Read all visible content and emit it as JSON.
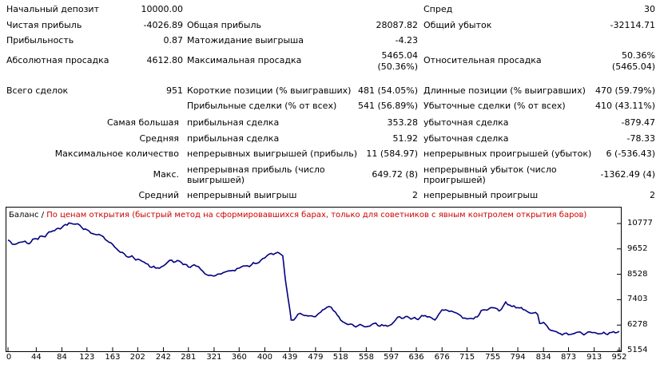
{
  "stats": {
    "deposit_label": "Начальный депозит",
    "deposit_value": "10000.00",
    "spread_label": "Спред",
    "spread_value": "30",
    "net_profit_label": "Чистая прибыль",
    "net_profit_value": "-4026.89",
    "gross_profit_label": "Общая прибыль",
    "gross_profit_value": "28087.82",
    "gross_loss_label": "Общий убыток",
    "gross_loss_value": "-32114.71",
    "profitability_label": "Прибыльность",
    "profitability_value": "0.87",
    "expected_payoff_label": "Матожидание выигрыша",
    "expected_payoff_value": "-4.23",
    "abs_dd_label": "Абсолютная просадка",
    "abs_dd_value": "4612.80",
    "max_dd_label": "Максимальная просадка",
    "max_dd_value_1": "5465.04",
    "max_dd_value_2": "(50.36%)",
    "rel_dd_label": "Относительная просадка",
    "rel_dd_value_1": "50.36%",
    "rel_dd_value_2": "(5465.04)",
    "total_trades_label": "Всего сделок",
    "total_trades_value": "951",
    "short_label": "Короткие позиции (% выигравших)",
    "short_value": "481 (54.05%)",
    "long_label": "Длинные позиции (% выигравших)",
    "long_value": "470 (59.79%)",
    "profit_trades_label": "Прибыльные сделки (% от всех)",
    "profit_trades_value": "541 (56.89%)",
    "loss_trades_label": "Убыточные сделки (% от всех)",
    "loss_trades_value": "410 (43.11%)",
    "largest_label": "Самая большая",
    "largest_profit_label": "прибыльная сделка",
    "largest_profit_value": "353.28",
    "largest_loss_label": "убыточная сделка",
    "largest_loss_value": "-879.47",
    "average_label": "Средняя",
    "average_profit_label": "прибыльная сделка",
    "average_profit_value": "51.92",
    "average_loss_label": "убыточная сделка",
    "average_loss_value": "-78.33",
    "max_count_label": "Максимальное количество",
    "max_cons_wins_label": "непрерывных выигрышей (прибыль)",
    "max_cons_wins_value": "11 (584.97)",
    "max_cons_losses_label": "непрерывных проигрышей (убыток)",
    "max_cons_losses_value": "6 (-536.43)",
    "max_label": "Макс.",
    "max_cons_profit_label": "непрерывная прибыль (число выигрышей)",
    "max_cons_profit_value": "649.72 (8)",
    "max_cons_loss_label": "непрерывный убыток (число проигрышей)",
    "max_cons_loss_value": "-1362.49 (4)",
    "avg_label": "Средний",
    "avg_cons_wins_label": "непрерывный выигрыш",
    "avg_cons_wins_value": "2",
    "avg_cons_losses_label": "непрерывный проигрыш",
    "avg_cons_losses_value": "2"
  },
  "chart_data": {
    "type": "line",
    "legend_series": "Баланс",
    "legend_separator": " / ",
    "legend_note": "По ценам открытия (быстрый метод на сформировавшихся барах, только для советников с явным контролем открытия баров)",
    "series_color": "#000080",
    "note_color": "#cc0000",
    "x_ticks": [
      0,
      44,
      84,
      123,
      163,
      202,
      242,
      281,
      321,
      360,
      400,
      439,
      479,
      518,
      558,
      597,
      636,
      676,
      715,
      755,
      794,
      834,
      873,
      913,
      952
    ],
    "y_ticks": [
      10777,
      9652,
      8528,
      7403,
      6278,
      5154
    ],
    "ylim": [
      5154,
      10777
    ],
    "xlim": [
      0,
      952
    ],
    "x": [
      0,
      10,
      20,
      30,
      44,
      55,
      70,
      84,
      95,
      105,
      115,
      123,
      135,
      145,
      155,
      163,
      175,
      190,
      202,
      215,
      230,
      242,
      255,
      270,
      281,
      290,
      300,
      310,
      321,
      335,
      350,
      360,
      370,
      385,
      400,
      410,
      420,
      428,
      432,
      436,
      439,
      441,
      445,
      455,
      465,
      479,
      490,
      500,
      510,
      518,
      530,
      545,
      558,
      570,
      585,
      597,
      610,
      625,
      636,
      650,
      665,
      676,
      690,
      705,
      715,
      725,
      740,
      755,
      765,
      775,
      785,
      794,
      805,
      815,
      825,
      828,
      834,
      845,
      860,
      873,
      885,
      900,
      913,
      925,
      940,
      952
    ],
    "y": [
      10050,
      9850,
      9950,
      9900,
      10100,
      10200,
      10450,
      10600,
      10800,
      10750,
      10600,
      10500,
      10300,
      10250,
      10000,
      9850,
      9500,
      9300,
      9200,
      9000,
      8800,
      8900,
      9150,
      9050,
      8850,
      8950,
      8750,
      8500,
      8450,
      8600,
      8700,
      8800,
      8900,
      9000,
      9250,
      9450,
      9500,
      9350,
      8300,
      7500,
      6950,
      6500,
      6500,
      6800,
      6700,
      6650,
      6950,
      7100,
      6850,
      6500,
      6300,
      6250,
      6200,
      6350,
      6250,
      6300,
      6650,
      6600,
      6550,
      6700,
      6500,
      6950,
      6900,
      6700,
      6550,
      6550,
      6950,
      7050,
      6900,
      7300,
      7100,
      7050,
      6950,
      6800,
      6750,
      6350,
      6400,
      6050,
      5900,
      5850,
      5950,
      5900,
      5950,
      5900,
      5950,
      6000
    ]
  }
}
